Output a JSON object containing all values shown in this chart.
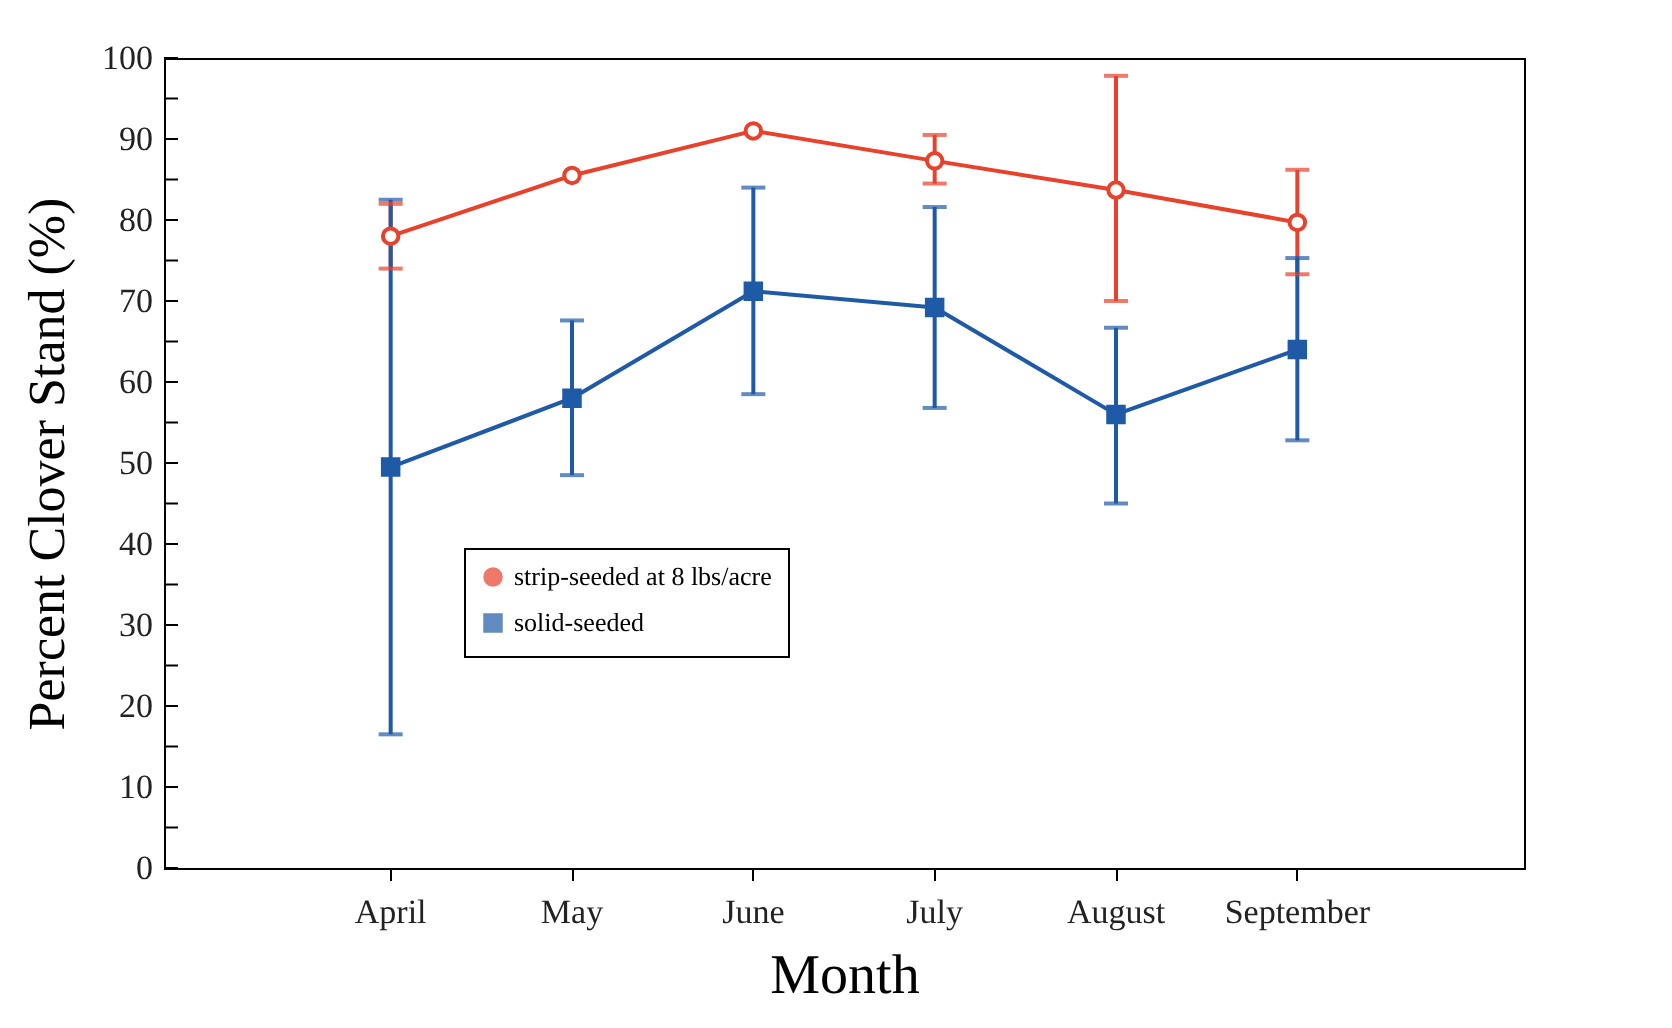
{
  "chart_data": {
    "type": "line",
    "xlabel": "Month",
    "ylabel": "Percent Clover Stand  (%)",
    "categories": [
      "April",
      "May",
      "June",
      "July",
      "August",
      "September"
    ],
    "series": [
      {
        "name": "strip-seeded at 8 lbs/acre",
        "color": "#e8412c",
        "marker": "circle",
        "values": [
          78,
          85.5,
          91,
          87.3,
          83.7,
          79.7
        ],
        "errors": [
          [
            74,
            82
          ],
          null,
          null,
          [
            84.5,
            90.5
          ],
          [
            70,
            97.8
          ],
          [
            73.3,
            86.2
          ]
        ]
      },
      {
        "name": "solid-seeded",
        "color": "#1f5aa6",
        "marker": "square",
        "values": [
          49.5,
          58,
          71.2,
          69.2,
          56,
          64
        ],
        "errors": [
          [
            16.5,
            82.5
          ],
          [
            48.5,
            67.6
          ],
          [
            58.5,
            84
          ],
          [
            56.8,
            81.6
          ],
          [
            45,
            66.7
          ],
          [
            52.8,
            75.3
          ]
        ]
      }
    ],
    "ylim": [
      0,
      100
    ],
    "yticks": [
      0,
      {
        "value": 5,
        "label": null
      },
      10,
      {
        "value": 15,
        "label": null
      },
      20,
      {
        "value": 25,
        "label": null
      },
      30,
      {
        "value": 35,
        "label": null
      },
      40,
      {
        "value": 45,
        "label": null
      },
      50,
      {
        "value": 55,
        "label": null
      },
      60,
      {
        "value": 65,
        "label": null
      },
      70,
      {
        "value": 75,
        "label": null
      },
      80,
      {
        "value": 85,
        "label": null
      },
      90,
      {
        "value": 95,
        "label": null
      },
      100
    ],
    "grid": false,
    "legend": "bottom left",
    "line_style": "solid"
  }
}
